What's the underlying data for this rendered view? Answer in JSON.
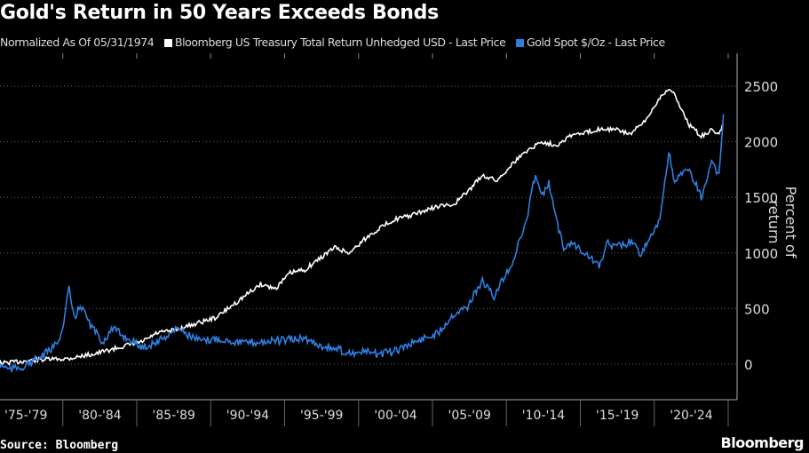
{
  "chart_data": {
    "type": "line",
    "title": "Gold's Return in 50 Years Exceeds Bonds",
    "subtitle": "Normalized As Of 05/31/1974",
    "ylabel": "Percent of return",
    "xlabel": "",
    "ylim": [
      -300,
      2700
    ],
    "xlim": [
      1974.4,
      2024.6
    ],
    "yticks": [
      0,
      500,
      1000,
      1500,
      2000,
      2500
    ],
    "xtick_labels": [
      "'75-'79",
      "'80-'84",
      "'85-'89",
      "'90-'94",
      "'95-'99",
      "'00-'04",
      "'05-'09",
      "'10-'14",
      "'15-'19",
      "'20-'24"
    ],
    "grid": true,
    "legend_position": "top",
    "series": [
      {
        "name": "Bloomberg US Treasury Total Return Unhedged USD - Last Price",
        "color": "#ffffff",
        "x": [
          1974.4,
          1976,
          1978,
          1980,
          1982,
          1984,
          1985,
          1986,
          1987,
          1988,
          1990,
          1991,
          1992,
          1993,
          1994,
          1995,
          1996,
          1998,
          1999,
          2000,
          2001,
          2002,
          2003,
          2005,
          2006,
          2007,
          2008,
          2009,
          2010,
          2011,
          2012,
          2013,
          2014,
          2015,
          2016,
          2017,
          2018,
          2019,
          2020,
          2020.6,
          2021,
          2022,
          2022.8,
          2023.5,
          2024,
          2024.3
        ],
        "y": [
          0,
          15,
          40,
          50,
          100,
          170,
          200,
          280,
          300,
          340,
          420,
          520,
          620,
          720,
          680,
          820,
          850,
          1050,
          1000,
          1120,
          1220,
          1300,
          1330,
          1420,
          1430,
          1550,
          1700,
          1650,
          1800,
          1920,
          2000,
          1970,
          2060,
          2080,
          2120,
          2110,
          2070,
          2180,
          2400,
          2480,
          2420,
          2150,
          2050,
          2100,
          2080,
          2150
        ]
      },
      {
        "name": "Gold Spot $/Oz - Last Price",
        "color": "#2f7fe0",
        "x": [
          1974.4,
          1975,
          1976,
          1977,
          1978,
          1979,
          1979.6,
          1980.05,
          1980.4,
          1980.8,
          1981.5,
          1982.3,
          1983,
          1984,
          1985,
          1986,
          1987.5,
          1988,
          1989,
          1990,
          1992,
          1993,
          1994,
          1996,
          1997,
          1998,
          1999,
          2000,
          2001,
          2002,
          2003,
          2004,
          2005,
          2006,
          2007,
          2008,
          2008.8,
          2009.5,
          2010,
          2011,
          2011.6,
          2012,
          2012.5,
          2013,
          2013.5,
          2014,
          2015,
          2015.9,
          2016.5,
          2017,
          2018,
          2018.7,
          2019.5,
          2020,
          2020.6,
          2021,
          2021.5,
          2022,
          2022.8,
          2023.5,
          2024,
          2024.3
        ],
        "y": [
          0,
          30,
          -50,
          -20,
          50,
          150,
          300,
          680,
          400,
          540,
          350,
          200,
          320,
          230,
          150,
          200,
          330,
          270,
          200,
          230,
          190,
          200,
          210,
          230,
          170,
          140,
          100,
          110,
          90,
          110,
          180,
          230,
          280,
          450,
          520,
          750,
          600,
          800,
          900,
          1300,
          1730,
          1500,
          1620,
          1300,
          1050,
          1100,
          1000,
          880,
          1100,
          1050,
          1100,
          1000,
          1150,
          1300,
          1900,
          1650,
          1700,
          1750,
          1500,
          1800,
          1700,
          2250
        ]
      }
    ]
  },
  "legend": {
    "subtitle": "Normalized As Of 05/31/1974",
    "bonds": "Bloomberg US Treasury Total Return Unhedged USD - Last Price",
    "gold": "Gold Spot $/Oz - Last Price"
  },
  "footer": {
    "source": "Source: Bloomberg",
    "brand": "Bloomberg"
  }
}
